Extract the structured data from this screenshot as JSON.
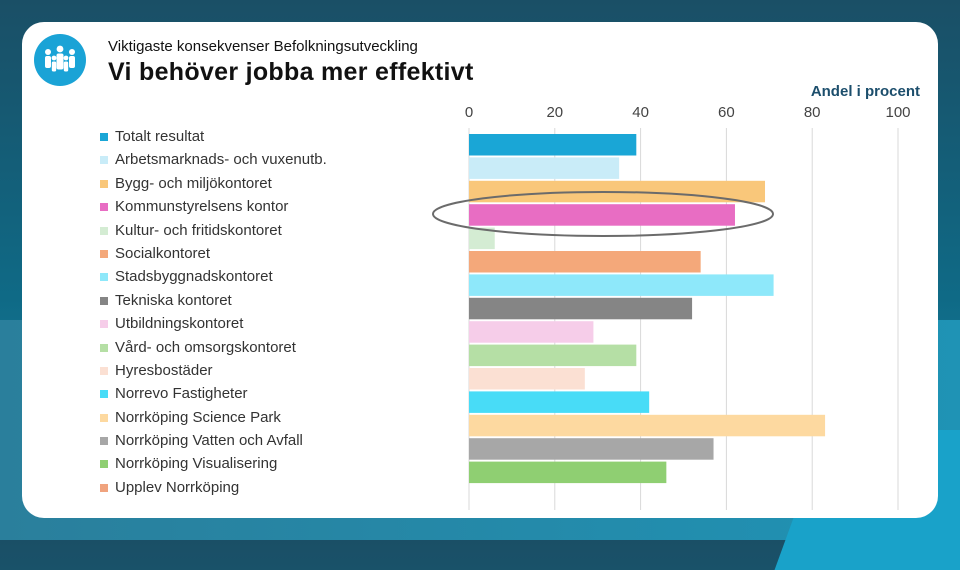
{
  "slide": {
    "supertitle": "Viktigaste konsekvenser Befolkningsutveckling",
    "title": "Vi behöver jobba mer effektivt",
    "logo_icon": "people-group-icon"
  },
  "chart_data": {
    "type": "bar",
    "orientation": "horizontal",
    "title": "",
    "xlabel": "Andel i procent",
    "ylabel": "",
    "xlim": [
      0,
      100
    ],
    "xticks": [
      0,
      20,
      40,
      60,
      80,
      100
    ],
    "grid": true,
    "legend_position": "left",
    "highlight": "Kommunstyrelsens kontor",
    "series": [
      {
        "name": "Totalt resultat",
        "value": 39,
        "color": "#1aa6d6"
      },
      {
        "name": "Arbetsmarknads- och vuxenutb.",
        "value": 35,
        "color": "#c9ecf8"
      },
      {
        "name": "Bygg- och miljökontoret",
        "value": 69,
        "color": "#f9c77a"
      },
      {
        "name": "Kommunstyrelsens kontor",
        "value": 62,
        "color": "#e86dc3"
      },
      {
        "name": "Kultur- och fritidskontoret",
        "value": 6,
        "color": "#d4ecd3"
      },
      {
        "name": "Socialkontoret",
        "value": 54,
        "color": "#f4a87a"
      },
      {
        "name": "Stadsbyggnadskontoret",
        "value": 71,
        "color": "#8ee8fa"
      },
      {
        "name": "Tekniska kontoret",
        "value": 52,
        "color": "#858585"
      },
      {
        "name": "Utbildningskontoret",
        "value": 29,
        "color": "#f6cde9"
      },
      {
        "name": "Vård- och omsorgskontoret",
        "value": 39,
        "color": "#b5dfa5"
      },
      {
        "name": "Hyresbostäder",
        "value": 27,
        "color": "#fbe0d3"
      },
      {
        "name": "Norrevo Fastigheter",
        "value": 42,
        "color": "#48dcf7"
      },
      {
        "name": "Norrköping Science Park",
        "value": 83,
        "color": "#fdd9a0"
      },
      {
        "name": "Norrköping Vatten och Avfall",
        "value": 57,
        "color": "#a7a7a7"
      },
      {
        "name": "Norrköping Visualisering",
        "value": 46,
        "color": "#8fcf72"
      },
      {
        "name": "Upplev Norrköping",
        "value": 0,
        "color": "#f0a37e"
      }
    ]
  }
}
